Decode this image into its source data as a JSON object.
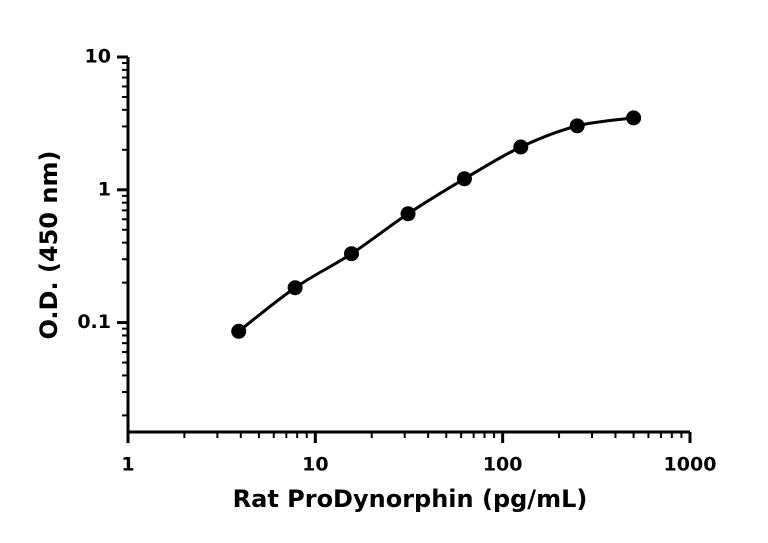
{
  "chart_data": {
    "type": "scatter",
    "x_label": "Rat ProDynorphin (pg/mL)",
    "y_label": "O.D. (450 nm)",
    "x": [
      3.9,
      7.8,
      15.6,
      31.25,
      62.5,
      125,
      250,
      500
    ],
    "values": [
      0.086,
      0.183,
      0.33,
      0.66,
      1.21,
      2.1,
      3.03,
      3.48
    ],
    "color": "#000000",
    "xlog": true,
    "ylog": true,
    "minor_ticks": true,
    "fit_curve": true,
    "xlim": [
      1,
      1000
    ],
    "xticks": [
      1,
      10,
      100,
      1000
    ],
    "ylim": [
      0.015,
      10
    ],
    "yticks": [
      0.1,
      1,
      10
    ]
  }
}
